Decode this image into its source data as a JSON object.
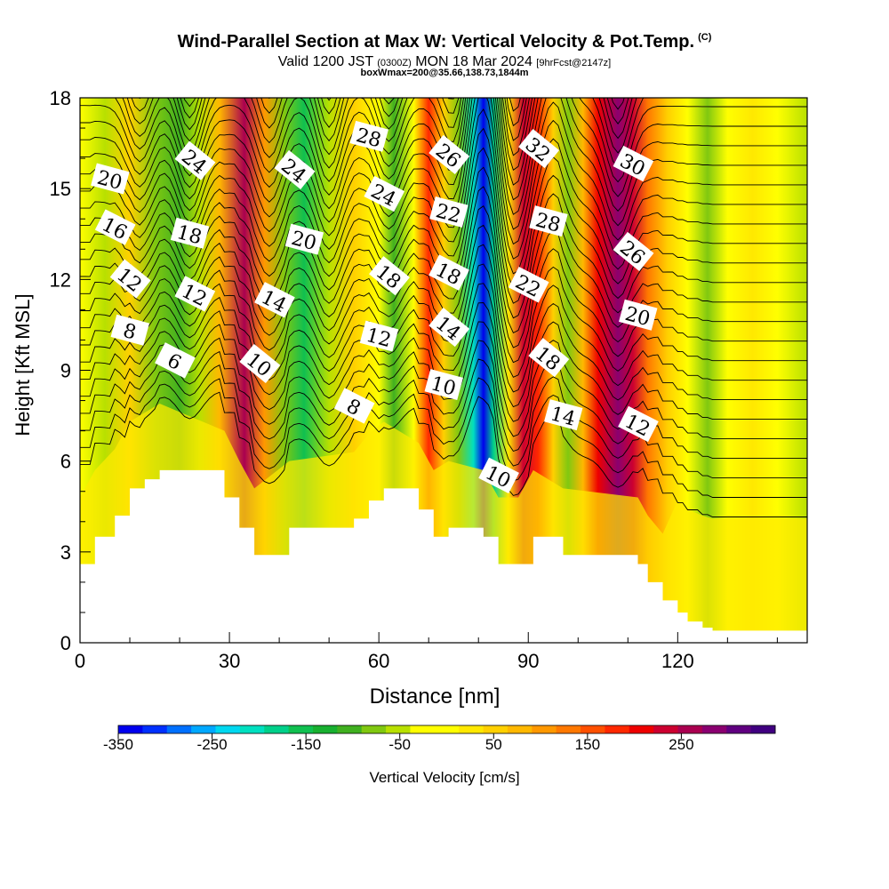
{
  "header": {
    "title": "Wind-Parallel Section at Max W: Vertical Velocity & Pot.Temp.",
    "title_mark": "(C)",
    "valid_prefix": "Valid 1200 JST",
    "valid_utc": "(0300Z)",
    "valid_date": "MON 18 Mar 2024",
    "forecast": "[9hrFcst@2147z]",
    "box_info": "boxWmax=200@35.66,138.73,1844m"
  },
  "chart_data": {
    "type": "heatmap",
    "xlabel": "Distance [nm]",
    "ylabel": "Height [Kft MSL]",
    "xlim": [
      0,
      146
    ],
    "ylim": [
      0,
      18
    ],
    "x_ticks": [
      0,
      30,
      60,
      90,
      120
    ],
    "y_ticks": [
      0,
      3,
      6,
      9,
      12,
      15,
      18
    ],
    "grid": false,
    "colorbar": {
      "label": "Vertical Velocity [cm/s]",
      "min": -350,
      "max": 325,
      "step": 25,
      "tick_values": [
        -350,
        -250,
        -150,
        -50,
        50,
        150,
        250
      ],
      "colors": [
        "#0000ee",
        "#0030ff",
        "#0070ff",
        "#00a8ff",
        "#00d8f0",
        "#00e0c0",
        "#00d08a",
        "#10c050",
        "#18b030",
        "#40b020",
        "#80c810",
        "#b8e000",
        "#ffff00",
        "#ffff00",
        "#ffe800",
        "#ffd000",
        "#ffb800",
        "#ff9800",
        "#ff7800",
        "#ff5000",
        "#ff2800",
        "#ee0000",
        "#cc0030",
        "#aa0050",
        "#8a0070",
        "#600080",
        "#400080"
      ]
    },
    "vertical_velocity_columns": [
      {
        "x": 0,
        "w": -40
      },
      {
        "x": 5,
        "w": -60
      },
      {
        "x": 10,
        "w": 30
      },
      {
        "x": 15,
        "w": -80
      },
      {
        "x": 20,
        "w": -120
      },
      {
        "x": 24,
        "w": -60
      },
      {
        "x": 28,
        "w": 60
      },
      {
        "x": 33,
        "w": 230
      },
      {
        "x": 37,
        "w": 90
      },
      {
        "x": 41,
        "w": -100
      },
      {
        "x": 45,
        "w": -160
      },
      {
        "x": 50,
        "w": -60
      },
      {
        "x": 55,
        "w": 30
      },
      {
        "x": 60,
        "w": -30
      },
      {
        "x": 63,
        "w": -120
      },
      {
        "x": 67,
        "w": -40
      },
      {
        "x": 70,
        "w": 150
      },
      {
        "x": 73,
        "w": 40
      },
      {
        "x": 76,
        "w": -80
      },
      {
        "x": 79,
        "w": -220
      },
      {
        "x": 81,
        "w": -340
      },
      {
        "x": 83,
        "w": -200
      },
      {
        "x": 86,
        "w": 20
      },
      {
        "x": 89,
        "w": 220
      },
      {
        "x": 92,
        "w": 150
      },
      {
        "x": 95,
        "w": 40
      },
      {
        "x": 98,
        "w": -80
      },
      {
        "x": 101,
        "w": 60
      },
      {
        "x": 104,
        "w": 190
      },
      {
        "x": 108,
        "w": 250
      },
      {
        "x": 111,
        "w": 200
      },
      {
        "x": 114,
        "w": 120
      },
      {
        "x": 118,
        "w": 40
      },
      {
        "x": 122,
        "w": -40
      },
      {
        "x": 126,
        "w": -90
      },
      {
        "x": 130,
        "w": -50
      },
      {
        "x": 135,
        "w": 10
      },
      {
        "x": 140,
        "w": -40
      },
      {
        "x": 146,
        "w": -60
      }
    ],
    "terrain": [
      {
        "x": 0,
        "h": 2.6
      },
      {
        "x": 3,
        "h": 3.5
      },
      {
        "x": 7,
        "h": 4.2
      },
      {
        "x": 10,
        "h": 5.1
      },
      {
        "x": 13,
        "h": 5.4
      },
      {
        "x": 16,
        "h": 5.7
      },
      {
        "x": 29,
        "h": 4.8
      },
      {
        "x": 32,
        "h": 3.8
      },
      {
        "x": 35,
        "h": 2.9
      },
      {
        "x": 42,
        "h": 3.8
      },
      {
        "x": 55,
        "h": 4.1
      },
      {
        "x": 58,
        "h": 4.7
      },
      {
        "x": 61,
        "h": 5.1
      },
      {
        "x": 68,
        "h": 4.4
      },
      {
        "x": 71,
        "h": 3.5
      },
      {
        "x": 74,
        "h": 3.8
      },
      {
        "x": 81,
        "h": 3.5
      },
      {
        "x": 84,
        "h": 2.6
      },
      {
        "x": 88,
        "h": 2.6
      },
      {
        "x": 91,
        "h": 3.5
      },
      {
        "x": 97,
        "h": 2.9
      },
      {
        "x": 112,
        "h": 2.6
      },
      {
        "x": 114,
        "h": 2.0
      },
      {
        "x": 117,
        "h": 1.4
      },
      {
        "x": 120,
        "h": 1.0
      },
      {
        "x": 122,
        "h": 0.7
      },
      {
        "x": 125,
        "h": 0.5
      },
      {
        "x": 127,
        "h": 0.4
      },
      {
        "x": 146,
        "h": 0.4
      }
    ],
    "theta_contour_labels": [
      {
        "text": "20",
        "x": 6,
        "y": 15.3
      },
      {
        "text": "16",
        "x": 7,
        "y": 13.7
      },
      {
        "text": "12",
        "x": 10,
        "y": 12.0
      },
      {
        "text": "8",
        "x": 10,
        "y": 10.3
      },
      {
        "text": "6",
        "x": 19,
        "y": 9.3
      },
      {
        "text": "24",
        "x": 23,
        "y": 15.9
      },
      {
        "text": "18",
        "x": 22,
        "y": 13.5
      },
      {
        "text": "12",
        "x": 23,
        "y": 11.5
      },
      {
        "text": "24",
        "x": 43,
        "y": 15.6
      },
      {
        "text": "20",
        "x": 45,
        "y": 13.3
      },
      {
        "text": "14",
        "x": 39,
        "y": 11.3
      },
      {
        "text": "10",
        "x": 36,
        "y": 9.2
      },
      {
        "text": "28",
        "x": 58,
        "y": 16.7
      },
      {
        "text": "24",
        "x": 61,
        "y": 14.8
      },
      {
        "text": "18",
        "x": 62,
        "y": 12.1
      },
      {
        "text": "12",
        "x": 60,
        "y": 10.1
      },
      {
        "text": "8",
        "x": 55,
        "y": 7.8
      },
      {
        "text": "26",
        "x": 74,
        "y": 16.1
      },
      {
        "text": "22",
        "x": 74,
        "y": 14.2
      },
      {
        "text": "18",
        "x": 74,
        "y": 12.2
      },
      {
        "text": "14",
        "x": 74,
        "y": 10.4
      },
      {
        "text": "10",
        "x": 73,
        "y": 8.5
      },
      {
        "text": "10",
        "x": 84,
        "y": 5.5
      },
      {
        "text": "32",
        "x": 92,
        "y": 16.3
      },
      {
        "text": "28",
        "x": 94,
        "y": 13.9
      },
      {
        "text": "22",
        "x": 90,
        "y": 11.8
      },
      {
        "text": "18",
        "x": 94,
        "y": 9.4
      },
      {
        "text": "14",
        "x": 97,
        "y": 7.5
      },
      {
        "text": "30",
        "x": 111,
        "y": 15.8
      },
      {
        "text": "26",
        "x": 111,
        "y": 12.9
      },
      {
        "text": "20",
        "x": 112,
        "y": 10.8
      },
      {
        "text": "12",
        "x": 112,
        "y": 7.2
      }
    ]
  }
}
